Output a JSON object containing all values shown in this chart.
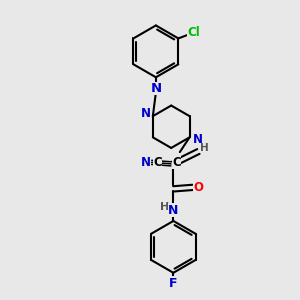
{
  "background_color": "#e8e8e8",
  "bond_color": "#000000",
  "bond_width": 1.5,
  "atom_colors": {
    "N": "#0000cc",
    "O": "#ff0000",
    "Cl": "#00bb00",
    "F": "#0000cc",
    "C": "#000000",
    "H": "#555555"
  },
  "font_size": 8.5,
  "fig_size": [
    3.0,
    3.0
  ],
  "dpi": 100,
  "xlim": [
    0,
    10
  ],
  "ylim": [
    0,
    10
  ]
}
